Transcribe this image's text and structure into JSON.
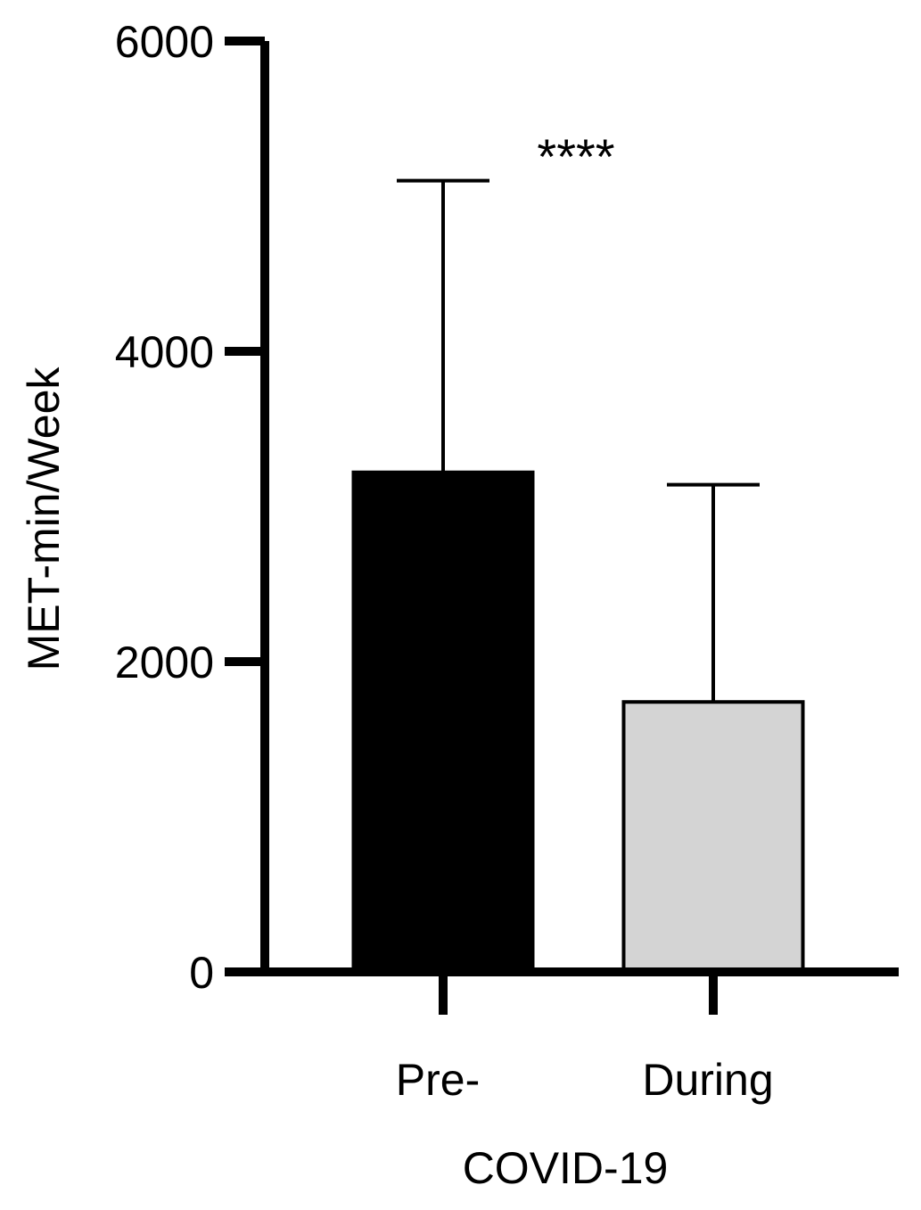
{
  "chart_data": {
    "type": "bar",
    "categories": [
      "Pre-",
      "During"
    ],
    "values": [
      3220,
      1740
    ],
    "error_upper": [
      5100,
      3140
    ],
    "xlabel": "COVID-19",
    "ylabel": "MET-min/Week",
    "ylim": [
      0,
      6000
    ],
    "yticks": [
      0,
      2000,
      4000,
      6000
    ],
    "yticklabels": [
      "0",
      "2000",
      "4000",
      "6000"
    ],
    "significance": "****",
    "grid": false,
    "legend": "none",
    "colors": [
      "#000000",
      "#d4d4d4"
    ]
  }
}
